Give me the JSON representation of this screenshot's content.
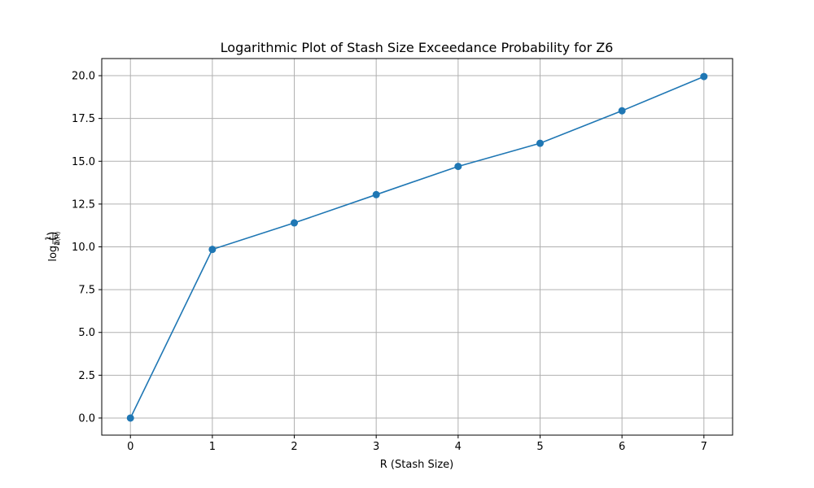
{
  "chart_data": {
    "type": "line",
    "title": "Logarithmic Plot of Stash Size Exceedance Probability for Z6",
    "xlabel": "R (Stash Size)",
    "ylabel": {
      "func": "log",
      "base": "2",
      "numerator": "1",
      "denominator": "δ(R)"
    },
    "x": [
      0,
      1,
      2,
      3,
      4,
      5,
      6,
      7
    ],
    "series": [
      {
        "values": [
          0.0,
          9.85,
          11.4,
          13.05,
          14.7,
          16.05,
          17.95,
          19.95
        ]
      }
    ],
    "xlim": [
      -0.35,
      7.35
    ],
    "ylim": [
      -1.0,
      21.0
    ],
    "xticks": [
      0,
      1,
      2,
      3,
      4,
      5,
      6,
      7
    ],
    "xtick_labels": [
      "0",
      "1",
      "2",
      "3",
      "4",
      "5",
      "6",
      "7"
    ],
    "yticks": [
      0,
      2.5,
      5,
      7.5,
      10,
      12.5,
      15,
      17.5,
      20
    ],
    "ytick_labels": [
      "0.0",
      "2.5",
      "5.0",
      "7.5",
      "10.0",
      "12.5",
      "15.0",
      "17.5",
      "20.0"
    ],
    "grid": true,
    "line_color": "#1f77b4",
    "grid_color": "#b0b0b0",
    "markers": "circle"
  }
}
